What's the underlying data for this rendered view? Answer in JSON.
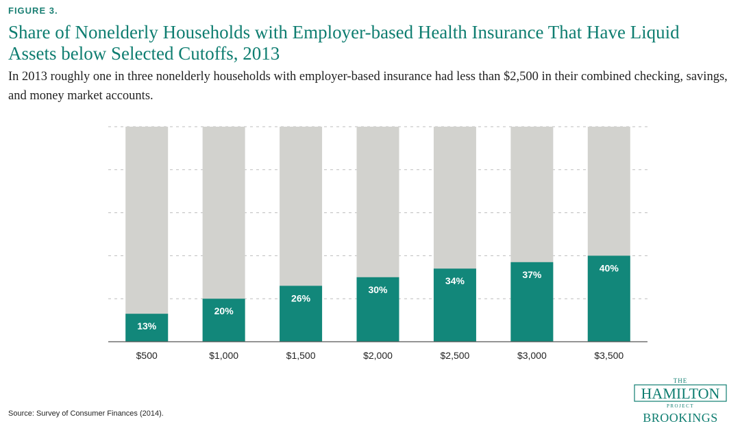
{
  "figure_label": "FIGURE 3.",
  "title": "Share of Nonelderly Households with Employer-based Health Insurance That Have Liquid Assets below Selected Cutoffs, 2013",
  "subtitle": "In 2013 roughly one in three nonelderly households with employer-based insurance had less than $2,500 in their combined checking, savings, and money market accounts.",
  "source": "Source: Survey of Consumer Finances (2014).",
  "logo": {
    "top_word": "THE",
    "main_word": "HAMILTON",
    "sub_word": "PROJECT",
    "org": "BROOKINGS"
  },
  "colors": {
    "accent": "#0e7d70",
    "bar_value": "#12877a",
    "bar_background": "#d2d2ce",
    "grid": "#bdbdbd"
  },
  "chart_data": {
    "type": "bar",
    "categories": [
      "$500",
      "$1,000",
      "$1,500",
      "$2,000",
      "$2,500",
      "$3,000",
      "$3,500"
    ],
    "values": [
      13,
      20,
      26,
      30,
      34,
      37,
      40
    ],
    "value_labels": [
      "13%",
      "20%",
      "26%",
      "30%",
      "34%",
      "37%",
      "40%"
    ],
    "background_total": 100,
    "ylim": [
      0,
      100
    ],
    "xlabel": "",
    "ylabel": "",
    "grid": true,
    "legend": "none"
  }
}
